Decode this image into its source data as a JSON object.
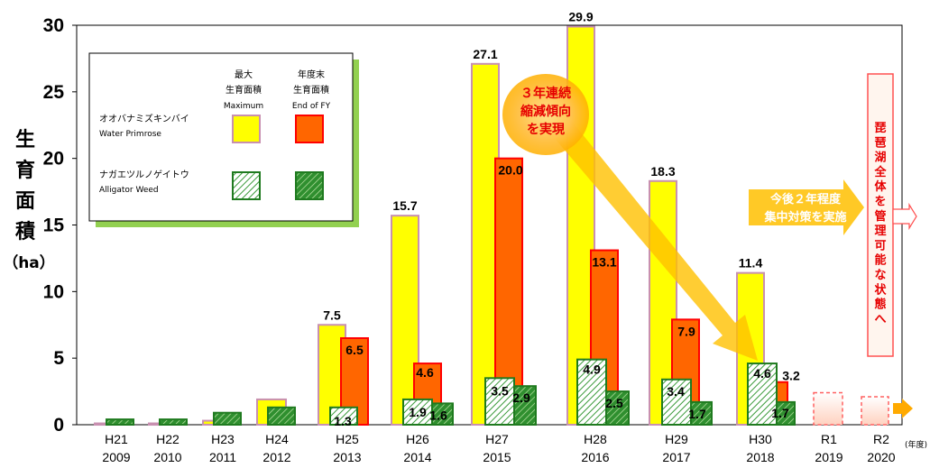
{
  "chart_data": {
    "type": "bar",
    "y_axis_label_chars": [
      "生",
      "育",
      "面",
      "積"
    ],
    "y_axis_unit": "（ha）",
    "x_axis_note": "(年度)",
    "ylim": [
      0,
      30
    ],
    "yticks": [
      "0",
      "5",
      "10",
      "15",
      "20",
      "25",
      "30"
    ],
    "categories": [
      {
        "era": "H21",
        "year": "2009"
      },
      {
        "era": "H22",
        "year": "2010"
      },
      {
        "era": "H23",
        "year": "2011"
      },
      {
        "era": "H24",
        "year": "2012"
      },
      {
        "era": "H25",
        "year": "2013"
      },
      {
        "era": "H26",
        "year": "2014"
      },
      {
        "era": "H27",
        "year": "2015"
      },
      {
        "era": "H28",
        "year": "2016"
      },
      {
        "era": "H29",
        "year": "2017"
      },
      {
        "era": "H30",
        "year": "2018"
      },
      {
        "era": "R1",
        "year": "2019"
      },
      {
        "era": "R2",
        "year": "2020"
      }
    ],
    "series": [
      {
        "name": "オオバナミズキンバイ Water Primrose 最大生育面積 Maximum",
        "values": [
          0.1,
          0.1,
          0.3,
          1.9,
          7.5,
          15.7,
          27.1,
          29.9,
          18.3,
          11.4,
          null,
          null
        ],
        "labels": [
          "",
          "",
          "",
          "",
          "7.5",
          "15.7",
          "27.1",
          "29.9",
          "18.3",
          "11.4",
          "",
          ""
        ],
        "fill": "#ffff00",
        "stroke": "#c890b0"
      },
      {
        "name": "オオバナミズキンバイ Water Primrose 年度末生育面積 End of FY",
        "values": [
          null,
          null,
          null,
          null,
          6.5,
          4.6,
          20.0,
          13.1,
          7.9,
          3.2,
          null,
          null
        ],
        "labels": [
          "",
          "",
          "",
          "",
          "6.5",
          "4.6",
          "20.0",
          "13.1",
          "7.9",
          "3.2",
          "",
          ""
        ],
        "fill": "#ff6600",
        "stroke": "#ff0000"
      },
      {
        "name": "ナガエツルノゲイトウ Alligator Weed 最大生育面積 Maximum",
        "values": [
          null,
          null,
          null,
          null,
          1.3,
          1.9,
          3.5,
          4.9,
          3.4,
          4.6,
          null,
          null
        ],
        "labels": [
          "",
          "",
          "",
          "",
          "1.3",
          "1.9",
          "3.5",
          "4.9",
          "3.4",
          "4.6",
          "",
          ""
        ],
        "fill": "#d9f0d0",
        "stroke": "#2e8b2e"
      },
      {
        "name": "ナガエツルノゲイトウ Alligator Weed 年度末生育面積 End of FY",
        "values": [
          0.4,
          0.4,
          0.9,
          1.3,
          null,
          1.6,
          2.9,
          2.5,
          1.7,
          1.7,
          null,
          null
        ],
        "labels": [
          "",
          "",
          "",
          "",
          "",
          "1.6",
          "2.9",
          "2.5",
          "1.7",
          "1.7",
          "",
          ""
        ],
        "fill": "#3fa33f",
        "stroke": "#2e8b2e"
      }
    ],
    "target_values": [
      null,
      null,
      null,
      null,
      null,
      null,
      null,
      null,
      null,
      null,
      2.4,
      2.1
    ],
    "legend": {
      "col1": [
        "最大",
        "生育面積",
        "Maximum"
      ],
      "col2": [
        "年度末",
        "生育面積",
        "End of FY"
      ],
      "rows": [
        {
          "jp": "オオバナミズキンバイ",
          "en": "Water Primrose"
        },
        {
          "jp": "ナガエツルノゲイトウ",
          "en": "Alligator Weed"
        }
      ]
    },
    "annotations": {
      "bubble": [
        "３年連続",
        "縮減傾向",
        "を実現"
      ],
      "arrow_text": [
        "今後２年程度",
        "集中対策を実施"
      ],
      "goal_text": "琵琶湖全体を管理可能な状態へ"
    },
    "colors": {
      "annotation_red": "#e60000",
      "bubble_orange": "#ffb300",
      "legend_shadow": "#92d050"
    }
  }
}
